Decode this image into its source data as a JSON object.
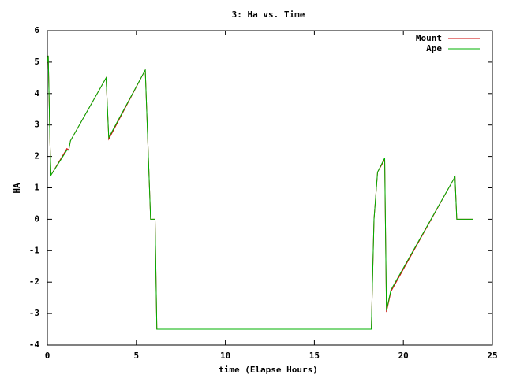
{
  "chart_data": {
    "type": "line",
    "title": "3: Ha vs. Time",
    "x_label": "time (Elapse Hours)",
    "y_label": "HA",
    "x": [
      0,
      0.05,
      0.15,
      0.2,
      1.1,
      1.2,
      1.3,
      3.3,
      3.45,
      5.5,
      5.8,
      6.05,
      6.15,
      18.2,
      18.35,
      18.55,
      18.95,
      19.05,
      19.3,
      22.9,
      23.0,
      23.9
    ],
    "series": [
      {
        "name": "Mount",
        "color": "#cc0000",
        "values": [
          5.0,
          5.2,
          2.4,
          1.4,
          2.25,
          2.2,
          2.5,
          4.5,
          2.55,
          4.75,
          0,
          0,
          -3.5,
          -3.5,
          0,
          1.5,
          1.9,
          -2.95,
          -2.3,
          1.35,
          0,
          0
        ]
      },
      {
        "name": "Ape",
        "color": "#00b000",
        "values": [
          5.0,
          5.2,
          2.4,
          1.4,
          2.2,
          2.2,
          2.5,
          4.5,
          2.6,
          4.75,
          0,
          0,
          -3.5,
          -3.5,
          0,
          1.5,
          1.95,
          -2.9,
          -2.25,
          1.35,
          0,
          0
        ]
      }
    ],
    "xlim": [
      0,
      25
    ],
    "xticks": [
      0,
      5,
      10,
      15,
      20,
      25
    ],
    "ylim": [
      -4,
      6
    ],
    "yticks": [
      -4,
      -3,
      -2,
      -1,
      0,
      1,
      2,
      3,
      4,
      5,
      6
    ],
    "grid": false,
    "legend": "top-right"
  }
}
